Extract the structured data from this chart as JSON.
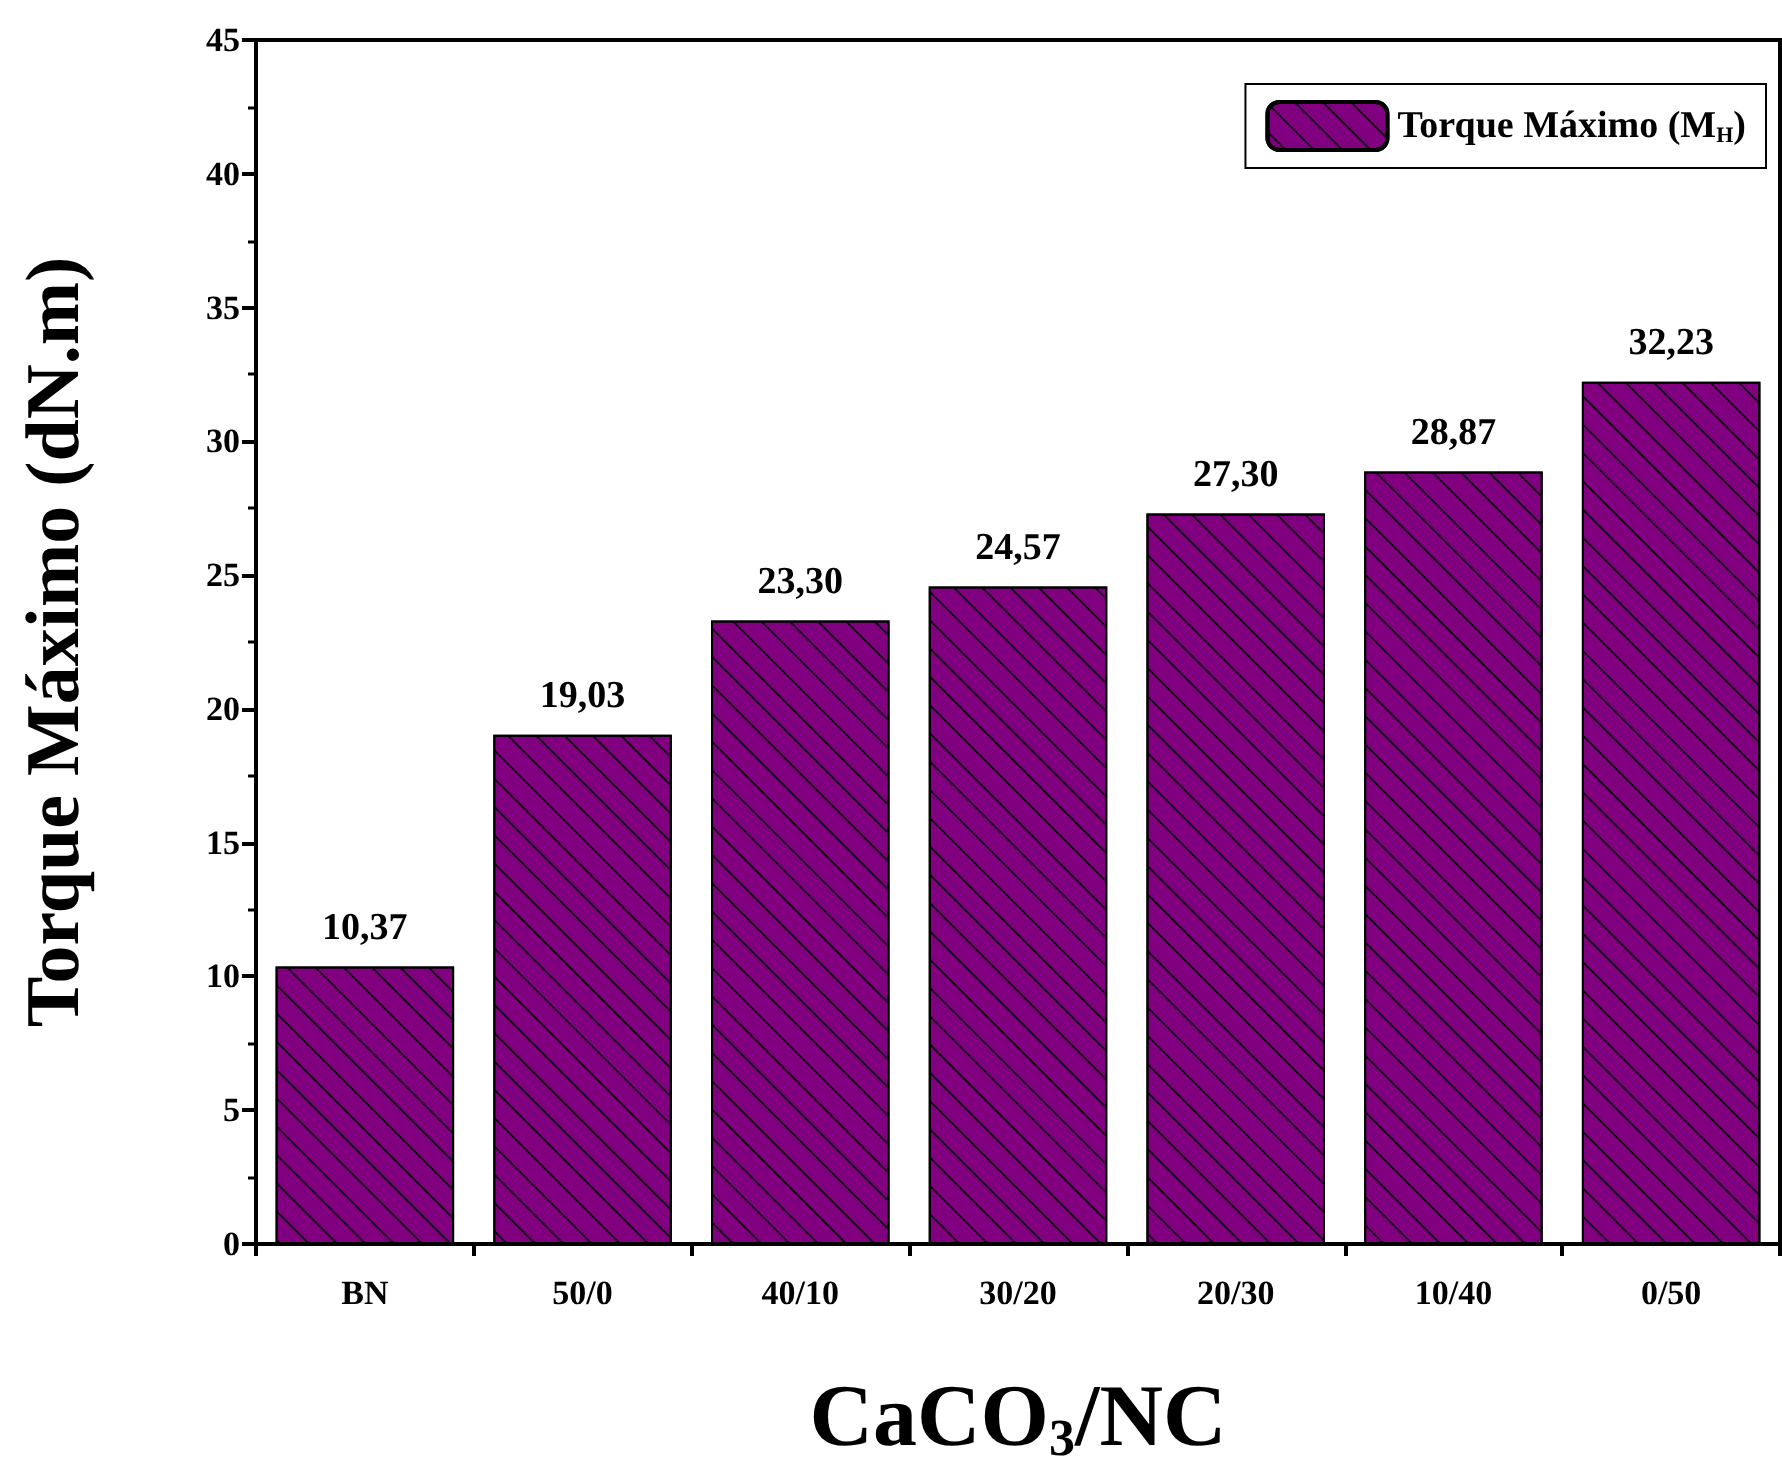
{
  "chart_data": {
    "type": "bar",
    "xlabel": "CaCO$_{3}$/NC",
    "ylabel": "Torque Máximo (dN.m)",
    "categories": [
      "BN",
      "50/0",
      "40/10",
      "30/20",
      "20/30",
      "10/40",
      "0/50"
    ],
    "series": [
      {
        "name": "Torque Máximo (M$_{H}$)",
        "color": "#800080",
        "values": [
          10.37,
          19.03,
          23.3,
          24.57,
          27.3,
          28.87,
          32.23
        ],
        "value_labels": [
          "10,37",
          "19,03",
          "23,30",
          "24,57",
          "27,30",
          "28,87",
          "32,23"
        ]
      }
    ],
    "ylim": [
      0,
      45
    ],
    "yticks": [
      0,
      5,
      10,
      15,
      20,
      25,
      30,
      35,
      40,
      45
    ],
    "grid": false,
    "legend": "top right"
  }
}
